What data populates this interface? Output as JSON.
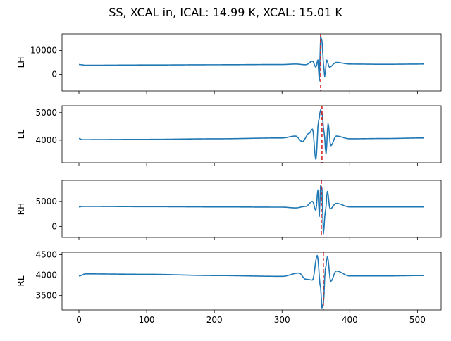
{
  "figure": {
    "title": "SS, XCAL in, ICAL: 14.99 K, XCAL: 15.01 K"
  },
  "style": {
    "line_color": "#1f77b4",
    "marker_color": "#d62728",
    "marker_line_style": "dashed"
  },
  "chart_data": [
    {
      "type": "line",
      "ylabel": "LH",
      "xlim": [
        -25,
        535
      ],
      "ylim": [
        -7000,
        17000
      ],
      "x_ticks": [
        0,
        100,
        200,
        300,
        400,
        500
      ],
      "y_ticks": [
        0,
        10000
      ],
      "x_tick_labels_visible": false,
      "grid": false,
      "baseline": 4200,
      "vline_x": 357,
      "x": [
        0,
        10,
        100,
        200,
        300,
        320,
        335,
        345,
        350,
        353,
        355,
        357,
        359,
        361,
        363,
        366,
        370,
        380,
        400,
        450,
        510
      ],
      "y": [
        4100,
        3800,
        3900,
        4000,
        4100,
        4300,
        4000,
        5500,
        3000,
        6000,
        -2800,
        16000,
        14000,
        5000,
        -1000,
        6000,
        3000,
        5000,
        4300,
        4200,
        4300
      ]
    },
    {
      "type": "line",
      "ylabel": "LL",
      "xlim": [
        -25,
        535
      ],
      "ylim": [
        3180,
        5250
      ],
      "x_ticks": [
        0,
        100,
        200,
        300,
        400,
        500
      ],
      "y_ticks": [
        4000,
        5000
      ],
      "x_tick_labels_visible": false,
      "grid": false,
      "baseline": 4060,
      "vline_x": 359,
      "x": [
        0,
        5,
        100,
        200,
        300,
        320,
        330,
        340,
        345,
        350,
        354,
        357,
        359,
        362,
        365,
        368,
        372,
        380,
        400,
        450,
        510
      ],
      "y": [
        4060,
        4020,
        4030,
        4050,
        4080,
        4150,
        3950,
        4250,
        4400,
        3300,
        4700,
        5100,
        5000,
        4300,
        3500,
        4600,
        3800,
        4150,
        4050,
        4060,
        4080
      ]
    },
    {
      "type": "line",
      "ylabel": "RH",
      "xlim": [
        -25,
        535
      ],
      "ylim": [
        -2200,
        9200
      ],
      "x_ticks": [
        0,
        100,
        200,
        300,
        400,
        500
      ],
      "y_ticks": [
        0,
        5000
      ],
      "x_tick_labels_visible": false,
      "grid": false,
      "baseline": 3900,
      "vline_x": 358,
      "x": [
        0,
        5,
        100,
        200,
        300,
        320,
        335,
        345,
        350,
        353,
        355,
        357,
        359,
        361,
        364,
        367,
        371,
        380,
        400,
        450,
        510
      ],
      "y": [
        3900,
        4000,
        3950,
        3900,
        3850,
        3700,
        4000,
        5000,
        3200,
        7300,
        2000,
        8200,
        7600,
        -1500,
        3000,
        7000,
        3500,
        4600,
        3900,
        3900,
        3900
      ]
    },
    {
      "type": "line",
      "ylabel": "RL",
      "xlim": [
        -25,
        535
      ],
      "ylim": [
        3150,
        4560
      ],
      "x_ticks": [
        0,
        100,
        200,
        300,
        400,
        500
      ],
      "y_ticks": [
        3500,
        4000,
        4500
      ],
      "x_tick_labels_visible": true,
      "grid": false,
      "baseline": 4000,
      "vline_x": 361,
      "x": [
        0,
        10,
        100,
        200,
        300,
        325,
        335,
        345,
        352,
        357,
        359,
        361,
        364,
        367,
        372,
        380,
        400,
        450,
        510
      ],
      "y": [
        3980,
        4030,
        4020,
        3990,
        3970,
        4050,
        3900,
        3880,
        4480,
        3700,
        3200,
        3300,
        4150,
        4450,
        3850,
        4100,
        3980,
        3980,
        3990
      ]
    }
  ]
}
